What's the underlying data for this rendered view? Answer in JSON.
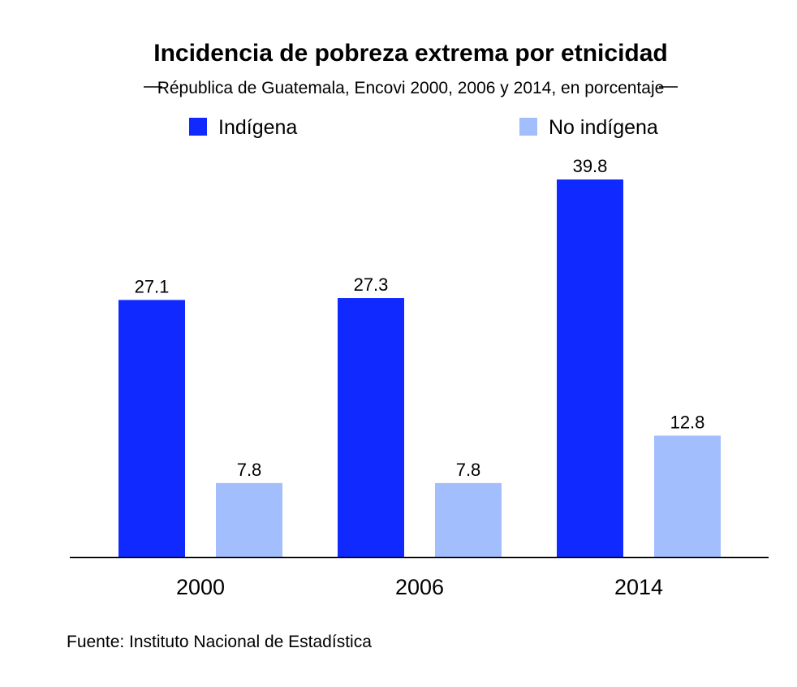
{
  "chart_data": {
    "type": "bar",
    "title": "Incidencia de pobreza extrema por etnicidad",
    "subtitle": "Républica de Guatemala, Encovi 2000, 2006 y 2014, en porcentaje",
    "categories": [
      "2000",
      "2006",
      "2014"
    ],
    "series": [
      {
        "name": "Indígena",
        "color": "#1029ff",
        "values": [
          27.1,
          27.3,
          39.8
        ]
      },
      {
        "name": "No indígena",
        "color": "#a3befc",
        "values": [
          7.8,
          7.8,
          12.8
        ]
      }
    ],
    "value_labels": [
      [
        "27.1",
        "27.3",
        "39.8"
      ],
      [
        "7.8",
        "7.8",
        "12.8"
      ]
    ],
    "xlabel": "",
    "ylabel": "",
    "ylim": [
      0,
      40
    ],
    "grid": false,
    "legend_position": "top",
    "source": "Fuente: Instituto Nacional de Estadística"
  }
}
